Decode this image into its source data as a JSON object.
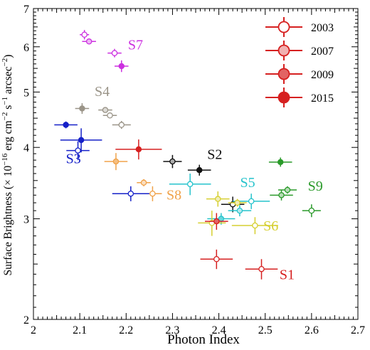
{
  "chart_data": {
    "type": "scatter",
    "xlabel": "Photon Index",
    "ylabel_main": "Surface Brightness (",
    "ylabel_times": "× 10",
    "ylabel_exp1": "−16",
    "ylabel_unit1": " erg cm",
    "ylabel_exp2": "−2",
    "ylabel_unit2": " s",
    "ylabel_exp3": "−1",
    "ylabel_unit3": " arcsec",
    "ylabel_exp4": "−2",
    "ylabel_end": ")",
    "xlim": [
      2.0,
      2.7
    ],
    "ylim": [
      2.0,
      7.0
    ],
    "yscale": "log",
    "xticks": [
      {
        "v": 2.0,
        "label": "2"
      },
      {
        "v": 2.1,
        "label": "2.1"
      },
      {
        "v": 2.2,
        "label": "2.2"
      },
      {
        "v": 2.3,
        "label": "2.3"
      },
      {
        "v": 2.4,
        "label": "2.4"
      },
      {
        "v": 2.5,
        "label": "2.5"
      },
      {
        "v": 2.6,
        "label": "2.6"
      },
      {
        "v": 2.7,
        "label": "2.7"
      }
    ],
    "yticks": [
      {
        "v": 2,
        "label": "2"
      },
      {
        "v": 3,
        "label": "3"
      },
      {
        "v": 4,
        "label": "4"
      },
      {
        "v": 5,
        "label": "5"
      },
      {
        "v": 6,
        "label": "6"
      },
      {
        "v": 7,
        "label": "7"
      }
    ],
    "legend": {
      "position": "top-right",
      "entries": [
        {
          "label": "2003",
          "fill": "open"
        },
        {
          "label": "2007",
          "fill": "light"
        },
        {
          "label": "2009",
          "fill": "medium"
        },
        {
          "label": "2015",
          "fill": "full"
        }
      ],
      "color": "#d62020"
    },
    "series": [
      {
        "name": "S1",
        "color": "#d62020",
        "label_at": [
          2.531,
          2.35
        ],
        "points": [
          {
            "year": "2003",
            "x": 2.395,
            "y": 2.55,
            "xerr": 0.035,
            "yerr": 0.1
          },
          {
            "year": "2003",
            "x": 2.492,
            "y": 2.45,
            "xerr": 0.035,
            "yerr": 0.1
          }
        ]
      },
      {
        "name": "S2",
        "color": "#111111",
        "label_at": [
          2.375,
          3.82
        ],
        "points": [
          {
            "year": "2003",
            "x": 2.43,
            "y": 3.18,
            "xerr": 0.025,
            "yerr": 0.1
          },
          {
            "year": "2007",
            "x": 2.3,
            "y": 3.78,
            "xerr": 0.02,
            "yerr": 0.1
          },
          {
            "year": "2015",
            "x": 2.358,
            "y": 3.65,
            "xerr": 0.025,
            "yerr": 0.08
          }
        ]
      },
      {
        "name": "S3",
        "color": "#1520c8",
        "label_at": [
          2.07,
          3.75
        ],
        "points": [
          {
            "year": "2003",
            "x": 2.096,
            "y": 3.95,
            "xerr": 0.025,
            "yerr": 0.15
          },
          {
            "year": "2015",
            "x": 2.103,
            "y": 4.12,
            "xerr": 0.045,
            "yerr": 0.2
          },
          {
            "year": "2015",
            "x": 2.07,
            "y": 4.38,
            "xerr": 0.025,
            "yerr": 0.06
          }
        ]
      },
      {
        "name": "S4",
        "color": "#9a9488",
        "label_at": [
          2.132,
          4.92
        ],
        "points": [
          {
            "year": "2015",
            "x": 2.105,
            "y": 4.68,
            "xerr": 0.015,
            "yerr": 0.1
          },
          {
            "year": "2007",
            "x": 2.155,
            "y": 4.65,
            "xerr": 0.015,
            "yerr": 0.05
          },
          {
            "year": "2003",
            "x": 2.165,
            "y": 4.55,
            "xerr": 0.015,
            "yerr": 0.05
          },
          {
            "year": "2003",
            "x": 2.19,
            "y": 4.38,
            "xerr": 0.02,
            "yerr": 0.07
          }
        ]
      },
      {
        "name": "S5",
        "color": "#26c3cc",
        "label_at": [
          2.446,
          3.41
        ],
        "points": [
          {
            "year": "2003",
            "x": 2.338,
            "y": 3.45,
            "xerr": 0.045,
            "yerr": 0.15
          },
          {
            "year": "2003",
            "x": 2.47,
            "y": 3.22,
            "xerr": 0.04,
            "yerr": 0.1
          },
          {
            "year": "2007",
            "x": 2.445,
            "y": 3.1,
            "xerr": 0.025,
            "yerr": 0.07
          },
          {
            "year": "2009",
            "x": 2.405,
            "y": 3.0,
            "xerr": 0.03,
            "yerr": 0.07
          }
        ]
      },
      {
        "name": "S6",
        "color": "#d6cf30",
        "label_at": [
          2.496,
          2.86
        ],
        "points": [
          {
            "year": "2007",
            "x": 2.398,
            "y": 3.25,
            "xerr": 0.025,
            "yerr": 0.1
          },
          {
            "year": "2007",
            "x": 2.44,
            "y": 3.2,
            "xerr": 0.02,
            "yerr": 0.05
          },
          {
            "year": "2003",
            "x": 2.478,
            "y": 2.92,
            "xerr": 0.05,
            "yerr": 0.1
          },
          {
            "year": "2003",
            "x": 2.385,
            "y": 2.95,
            "xerr": 0.03,
            "yerr": 0.15
          }
        ]
      },
      {
        "name": "S7",
        "color": "#cc30e0",
        "label_at": [
          2.204,
          5.94
        ],
        "points": [
          {
            "year": "2003",
            "x": 2.11,
            "y": 6.3,
            "xerr": 0.01,
            "yerr": 0.12
          },
          {
            "year": "2007",
            "x": 2.12,
            "y": 6.13,
            "xerr": 0.015,
            "yerr": 0.05
          },
          {
            "year": "2003",
            "x": 2.175,
            "y": 5.85,
            "xerr": 0.015,
            "yerr": 0.1
          },
          {
            "year": "2015",
            "x": 2.19,
            "y": 5.55,
            "xerr": 0.015,
            "yerr": 0.13
          }
        ]
      },
      {
        "name": "S8",
        "color": "#f0a24a",
        "label_at": [
          2.287,
          3.24
        ],
        "points": [
          {
            "year": "2009",
            "x": 2.178,
            "y": 3.78,
            "xerr": 0.025,
            "yerr": 0.13
          },
          {
            "year": "2007",
            "x": 2.238,
            "y": 3.47,
            "xerr": 0.015,
            "yerr": 0.05
          },
          {
            "year": "2003",
            "x": 2.257,
            "y": 3.32,
            "xerr": 0.02,
            "yerr": 0.1
          }
        ]
      },
      {
        "name": "S9",
        "color": "#2a9a2a",
        "label_at": [
          2.592,
          3.36
        ],
        "points": [
          {
            "year": "2015",
            "x": 2.533,
            "y": 3.77,
            "xerr": 0.025,
            "yerr": 0.07
          },
          {
            "year": "2007",
            "x": 2.548,
            "y": 3.37,
            "xerr": 0.02,
            "yerr": 0.05
          },
          {
            "year": "2007",
            "x": 2.535,
            "y": 3.3,
            "xerr": 0.025,
            "yerr": 0.07
          },
          {
            "year": "2003",
            "x": 2.6,
            "y": 3.1,
            "xerr": 0.02,
            "yerr": 0.08
          }
        ]
      },
      {
        "name": "",
        "color": "#1520c8",
        "points": [
          {
            "year": "2003",
            "x": 2.21,
            "y": 3.32,
            "xerr": 0.04,
            "yerr": 0.1
          }
        ]
      },
      {
        "name": "",
        "color": "#d62020",
        "points": [
          {
            "year": "2015",
            "x": 2.227,
            "y": 3.97,
            "xerr": 0.05,
            "yerr": 0.16
          },
          {
            "year": "2009",
            "x": 2.395,
            "y": 2.97,
            "xerr": 0.025,
            "yerr": 0.1
          }
        ]
      }
    ]
  }
}
